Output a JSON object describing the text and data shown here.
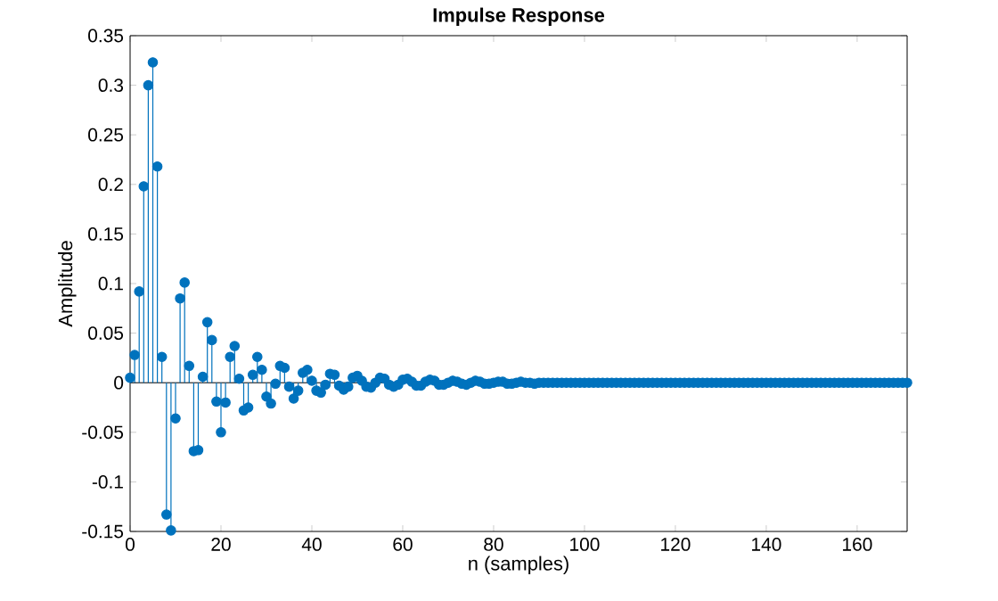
{
  "chart_data": {
    "type": "lollipop",
    "title": "Impulse Response",
    "xlabel": "n (samples)",
    "ylabel": "Amplitude",
    "x": [
      0,
      1,
      2,
      3,
      4,
      5,
      6,
      7,
      8,
      9,
      10,
      11,
      12,
      13,
      14,
      15,
      16,
      17,
      18,
      19,
      20,
      21,
      22,
      23,
      24,
      25,
      26,
      27,
      28,
      29,
      30,
      31,
      32,
      33,
      34,
      35,
      36,
      37,
      38,
      39,
      40,
      41,
      42,
      43,
      44,
      45,
      46,
      47,
      48,
      49,
      50,
      51,
      52,
      53,
      54,
      55,
      56,
      57,
      58,
      59,
      60,
      61,
      62,
      63,
      64,
      65,
      66,
      67,
      68,
      69,
      70,
      71,
      72,
      73,
      74,
      75,
      76,
      77,
      78,
      79,
      80,
      81,
      82,
      83,
      84,
      85,
      86,
      87,
      88,
      89,
      90,
      91,
      92,
      93,
      94,
      95,
      96,
      97,
      98,
      99,
      100,
      101,
      102,
      103,
      104,
      105,
      106,
      107,
      108,
      109,
      110,
      111,
      112,
      113,
      114,
      115,
      116,
      117,
      118,
      119,
      120,
      121,
      122,
      123,
      124,
      125,
      126,
      127,
      128,
      129,
      130,
      131,
      132,
      133,
      134,
      135,
      136,
      137,
      138,
      139,
      140,
      141,
      142,
      143,
      144,
      145,
      146,
      147,
      148,
      149,
      150,
      151,
      152,
      153,
      154,
      155,
      156,
      157,
      158,
      159,
      160,
      161,
      162,
      163,
      164,
      165,
      166,
      167,
      168,
      169,
      170,
      171
    ],
    "values": [
      0.005,
      0.028,
      0.092,
      0.198,
      0.3,
      0.323,
      0.218,
      0.026,
      -0.133,
      -0.149,
      -0.036,
      0.085,
      0.101,
      0.017,
      -0.069,
      -0.068,
      0.006,
      0.061,
      0.043,
      -0.019,
      -0.05,
      -0.02,
      0.026,
      0.037,
      0.004,
      -0.028,
      -0.025,
      0.008,
      0.026,
      0.013,
      -0.014,
      -0.021,
      -0.001,
      0.017,
      0.015,
      -0.004,
      -0.016,
      -0.008,
      0.01,
      0.013,
      0.002,
      -0.008,
      -0.01,
      -0.002,
      0.009,
      0.008,
      -0.003,
      -0.007,
      -0.004,
      0.005,
      0.007,
      0.002,
      -0.004,
      -0.005,
      0.0,
      0.005,
      0.004,
      -0.002,
      -0.004,
      -0.002,
      0.003,
      0.004,
      0.001,
      -0.003,
      -0.003,
      0.001,
      0.003,
      0.002,
      -0.002,
      -0.002,
      0.0,
      0.002,
      0.001,
      -0.001,
      -0.002,
      0.0,
      0.002,
      0.001,
      -0.001,
      -0.001,
      0,
      0.001,
      0.001,
      -0.001,
      -0.001,
      0,
      0.001,
      0,
      0,
      -0.001,
      0,
      0,
      0,
      0,
      0,
      0,
      0,
      0,
      0,
      0,
      0,
      0,
      0,
      0,
      0,
      0,
      0,
      0,
      0,
      0,
      0,
      0,
      0,
      0,
      0,
      0,
      0,
      0,
      0,
      0,
      0,
      0,
      0,
      0,
      0,
      0,
      0,
      0,
      0,
      0,
      0,
      0,
      0,
      0,
      0,
      0,
      0,
      0,
      0,
      0,
      0,
      0,
      0,
      0,
      0,
      0,
      0,
      0,
      0,
      0,
      0,
      0,
      0,
      0,
      0,
      0,
      0,
      0,
      0,
      0,
      0,
      0,
      0,
      0,
      0,
      0,
      0,
      0,
      0,
      0,
      0,
      0
    ],
    "color": "#0072bd",
    "marker": "circle",
    "xlim": [
      0,
      171
    ],
    "ylim": [
      -0.15,
      0.35
    ],
    "xticks": [
      0,
      20,
      40,
      60,
      80,
      100,
      120,
      140,
      160
    ],
    "yticks": [
      -0.15,
      -0.1,
      -0.05,
      0,
      0.05,
      0.1,
      0.15,
      0.2,
      0.25,
      0.3,
      0.35
    ]
  }
}
